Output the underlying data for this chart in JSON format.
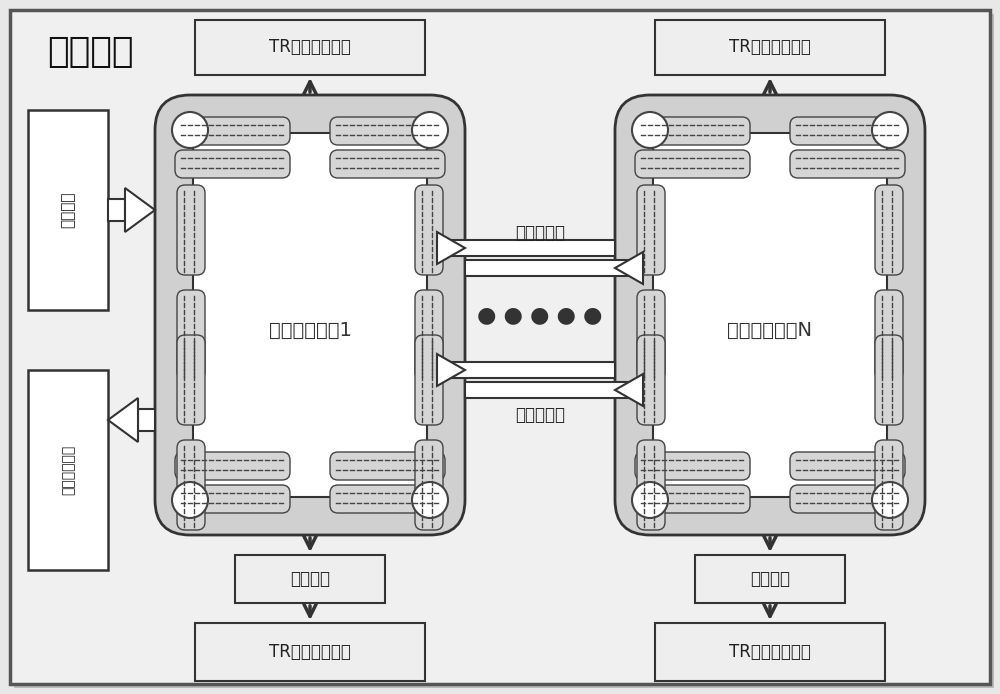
{
  "title": "适配底板",
  "left_box1_label": "总线接口",
  "left_box2_label": "总线接口存储",
  "board1_label": "信号处理子板1",
  "boardN_label": "信号处理子板N",
  "interconnect_label": "子卡间互联",
  "level_conv_label": "电平转换",
  "tr_ctrl_label": "TR组件控制接口",
  "bg_color": "#e8e8e8",
  "outer_fc": "#f0f0f0",
  "board_fc": "#d0d0d0",
  "inner_fc": "#ffffff",
  "box_fc": "#f8f8f8",
  "shadow_fc": "#b0b0b0"
}
